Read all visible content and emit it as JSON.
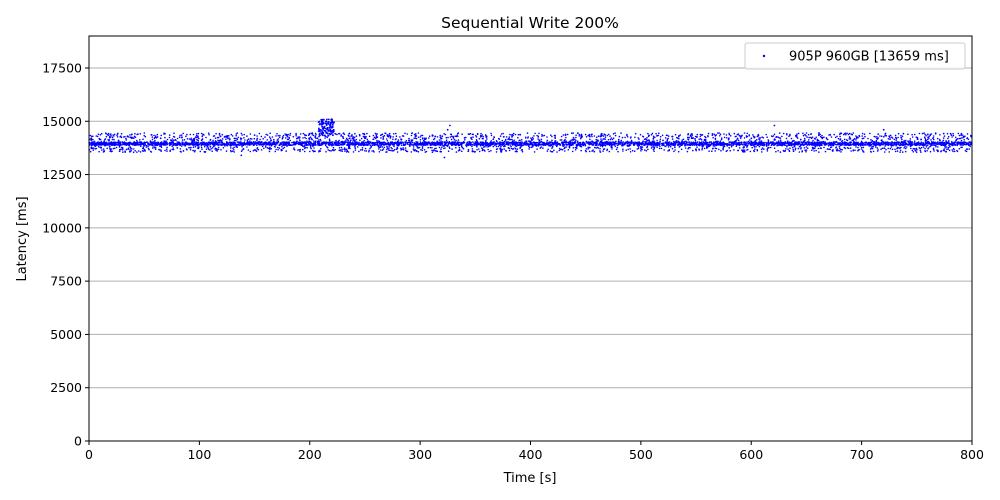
{
  "chart_data": {
    "type": "scatter",
    "title": "Sequential Write 200%",
    "xlabel": "Time [s]",
    "ylabel": "Latency [ms]",
    "xlim": [
      0,
      800
    ],
    "ylim": [
      0,
      19000
    ],
    "x_ticks": [
      0,
      100,
      200,
      300,
      400,
      500,
      600,
      700,
      800
    ],
    "y_ticks": [
      0,
      2500,
      5000,
      7500,
      10000,
      12500,
      15000,
      17500
    ],
    "grid": "horizontal",
    "legend_position": "top-right",
    "series": [
      {
        "name": "905P 960GB [13659 ms]",
        "color": "#0000ff",
        "marker": "dot",
        "baseline_latency": 13950,
        "band_low": 13550,
        "band_high": 14450,
        "x_range": [
          0,
          800
        ],
        "points": [
          [
            5,
            14050
          ],
          [
            20,
            13700
          ],
          [
            35,
            14300
          ],
          [
            50,
            13850
          ],
          [
            65,
            14200
          ],
          [
            80,
            13750
          ],
          [
            95,
            14100
          ],
          [
            110,
            13800
          ],
          [
            125,
            14250
          ],
          [
            138,
            13400
          ],
          [
            140,
            13700
          ],
          [
            150,
            14350
          ],
          [
            165,
            13900
          ],
          [
            180,
            14150
          ],
          [
            195,
            13800
          ],
          [
            207,
            14200
          ],
          [
            210,
            14600
          ],
          [
            212,
            14900
          ],
          [
            215,
            15000
          ],
          [
            218,
            14700
          ],
          [
            220,
            14500
          ],
          [
            230,
            13900
          ],
          [
            250,
            14200
          ],
          [
            270,
            13800
          ],
          [
            290,
            14100
          ],
          [
            310,
            13900
          ],
          [
            320,
            14300
          ],
          [
            322,
            13300
          ],
          [
            325,
            14600
          ],
          [
            327,
            14800
          ],
          [
            340,
            14000
          ],
          [
            360,
            14250
          ],
          [
            380,
            13750
          ],
          [
            400,
            14050
          ],
          [
            420,
            13800
          ],
          [
            440,
            14150
          ],
          [
            460,
            13900
          ],
          [
            480,
            14050
          ],
          [
            500,
            13800
          ],
          [
            520,
            14100
          ],
          [
            540,
            13850
          ],
          [
            560,
            14000
          ],
          [
            580,
            13750
          ],
          [
            600,
            14200
          ],
          [
            621,
            14800
          ],
          [
            640,
            13900
          ],
          [
            660,
            14100
          ],
          [
            680,
            13800
          ],
          [
            700,
            14000
          ],
          [
            715,
            14400
          ],
          [
            720,
            14600
          ],
          [
            725,
            14300
          ],
          [
            740,
            13900
          ],
          [
            760,
            14150
          ],
          [
            780,
            13800
          ],
          [
            798,
            14000
          ]
        ]
      }
    ]
  }
}
